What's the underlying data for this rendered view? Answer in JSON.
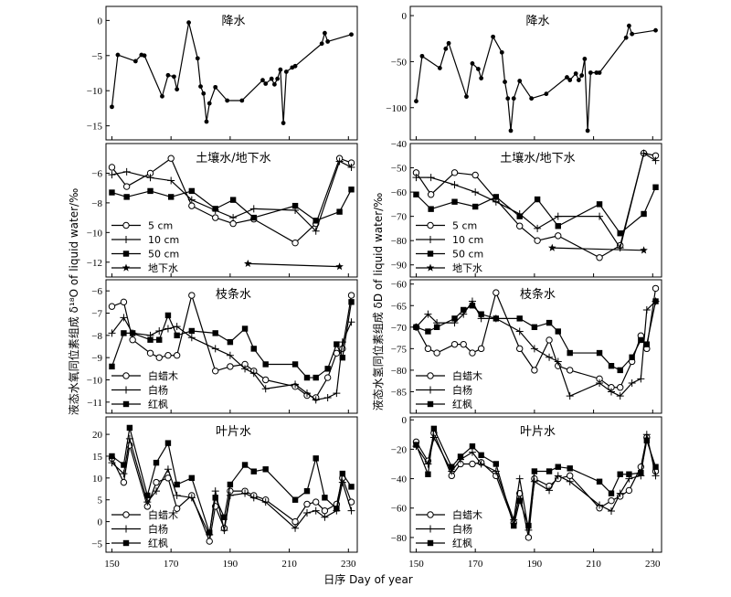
{
  "figure": {
    "xlabel": "日序 Day of year",
    "ylabel_left": "液态水氧同位素组成 δ¹⁸O of liquid water/‰",
    "ylabel_right": "液态水氢同位素组成 δD of liquid water/‰"
  },
  "chart_data": [
    {
      "type": "line",
      "column": "left",
      "row": 0,
      "title": "降水",
      "xlim": [
        148,
        233
      ],
      "ylim": [
        -17,
        2
      ],
      "yticks": [
        -15,
        -10,
        -5,
        0
      ],
      "xticks": [
        150,
        170,
        190,
        210,
        230
      ],
      "series": [
        {
          "name": "",
          "marker": "dot",
          "x": [
            150,
            152,
            158,
            160,
            161,
            167,
            169,
            171,
            172,
            176,
            179,
            180,
            181,
            182,
            183,
            185,
            189,
            194,
            201,
            202,
            204,
            205,
            206,
            207,
            208,
            209,
            211,
            212,
            221,
            222,
            223,
            231
          ],
          "y": [
            -12.3,
            -4.9,
            -5.8,
            -4.9,
            -5.0,
            -10.8,
            -7.8,
            -8.0,
            -9.8,
            -0.3,
            -5.4,
            -9.4,
            -10.4,
            -14.4,
            -11.8,
            -9.5,
            -11.4,
            -11.4,
            -8.5,
            -9.0,
            -8.3,
            -9.1,
            -8.3,
            -7.0,
            -14.6,
            -7.3,
            -6.7,
            -6.5,
            -3.3,
            -1.8,
            -3.0,
            -2.0
          ]
        }
      ]
    },
    {
      "type": "line",
      "column": "left",
      "row": 1,
      "title": "土壤水/地下水",
      "xlim": [
        148,
        233
      ],
      "ylim": [
        -13,
        -4
      ],
      "yticks": [
        -12,
        -10,
        -8,
        -6
      ],
      "xticks": [
        150,
        170,
        190,
        210,
        230
      ],
      "series": [
        {
          "name": "5 cm",
          "marker": "circle",
          "x": [
            150,
            155,
            163,
            170,
            177,
            185,
            191,
            198,
            212,
            219,
            227,
            231
          ],
          "y": [
            -5.6,
            -6.9,
            -6.0,
            -5.0,
            -8.2,
            -9.0,
            -9.4,
            -9.1,
            -10.7,
            -9.4,
            -5.0,
            -5.3
          ]
        },
        {
          "name": "10 cm",
          "marker": "plus",
          "x": [
            150,
            155,
            163,
            170,
            177,
            185,
            191,
            198,
            212,
            219,
            227,
            231
          ],
          "y": [
            -6.1,
            -5.9,
            -6.3,
            -6.5,
            -7.8,
            -8.5,
            -9.0,
            -8.4,
            -8.5,
            -9.9,
            -5.2,
            -5.6
          ]
        },
        {
          "name": "50 cm",
          "marker": "square",
          "x": [
            150,
            155,
            163,
            170,
            177,
            185,
            191,
            198,
            212,
            219,
            227,
            231
          ],
          "y": [
            -7.3,
            -7.6,
            -7.2,
            -7.6,
            -7.2,
            -8.4,
            -7.8,
            -9.0,
            -8.2,
            -9.2,
            -8.6,
            -7.1
          ]
        },
        {
          "name": "地下水",
          "marker": "star",
          "x": [
            196,
            227
          ],
          "y": [
            -12.1,
            -12.3
          ]
        }
      ]
    },
    {
      "type": "line",
      "column": "left",
      "row": 2,
      "title": "枝条水",
      "xlim": [
        148,
        233
      ],
      "ylim": [
        -11.5,
        -5.5
      ],
      "yticks": [
        -11,
        -10,
        -9,
        -8,
        -7,
        -6
      ],
      "xticks": [
        150,
        170,
        190,
        210,
        230
      ],
      "series": [
        {
          "name": "白蜡木",
          "marker": "circle",
          "x": [
            150,
            154,
            157,
            163,
            166,
            169,
            172,
            177,
            185,
            190,
            195,
            198,
            202,
            212,
            216,
            219,
            223,
            226,
            228,
            231
          ],
          "y": [
            -6.7,
            -6.5,
            -8.2,
            -8.8,
            -9.0,
            -8.9,
            -8.9,
            -6.2,
            -9.6,
            -9.4,
            -9.3,
            -9.6,
            -10.0,
            -10.3,
            -10.7,
            -10.8,
            -9.9,
            -8.8,
            -8.6,
            -6.2
          ]
        },
        {
          "name": "白杨",
          "marker": "plus",
          "x": [
            150,
            154,
            157,
            163,
            166,
            169,
            172,
            177,
            185,
            190,
            195,
            198,
            202,
            212,
            216,
            219,
            223,
            226,
            228,
            231
          ],
          "y": [
            -7.9,
            -7.2,
            -7.9,
            -8.0,
            -7.8,
            -7.7,
            -7.6,
            -8.1,
            -8.6,
            -8.9,
            -9.5,
            -9.7,
            -10.4,
            -10.2,
            -10.6,
            -10.9,
            -10.8,
            -10.6,
            -8.3,
            -7.4
          ]
        },
        {
          "name": "红枫",
          "marker": "square",
          "x": [
            150,
            154,
            157,
            163,
            166,
            169,
            172,
            177,
            185,
            190,
            195,
            198,
            202,
            212,
            216,
            219,
            223,
            226,
            228,
            231
          ],
          "y": [
            -9.4,
            -7.9,
            -7.9,
            -8.2,
            -8.2,
            -7.1,
            -8.0,
            -7.8,
            -7.9,
            -8.3,
            -7.7,
            -8.6,
            -9.3,
            -9.3,
            -9.9,
            -9.9,
            -9.5,
            -8.4,
            -9.0,
            -6.5
          ]
        }
      ]
    },
    {
      "type": "line",
      "column": "left",
      "row": 3,
      "title": "叶片水",
      "xlim": [
        148,
        233
      ],
      "ylim": [
        -7,
        24
      ],
      "yticks": [
        -5,
        0,
        5,
        10,
        15,
        20
      ],
      "xticks": [
        150,
        170,
        190,
        210,
        230
      ],
      "series": [
        {
          "name": "白蜡木",
          "marker": "circle",
          "x": [
            150,
            154,
            156,
            162,
            165,
            169,
            172,
            177,
            183,
            185,
            188,
            190,
            195,
            198,
            202,
            212,
            216,
            219,
            222,
            226,
            228,
            231
          ],
          "y": [
            14.5,
            9.0,
            17.5,
            3.5,
            9.0,
            10.0,
            3.0,
            6.0,
            -4.5,
            3.5,
            -1.5,
            7.0,
            7.0,
            6.0,
            5.0,
            0.0,
            4.0,
            4.5,
            2.5,
            4.0,
            10.0,
            4.5
          ]
        },
        {
          "name": "白杨",
          "marker": "plus",
          "x": [
            150,
            154,
            156,
            162,
            165,
            169,
            172,
            177,
            183,
            185,
            188,
            190,
            195,
            198,
            202,
            212,
            216,
            219,
            222,
            226,
            228,
            231
          ],
          "y": [
            13.5,
            11.0,
            19.0,
            4.5,
            7.0,
            12.0,
            6.0,
            5.5,
            -3.0,
            7.0,
            -2.0,
            6.0,
            6.5,
            5.5,
            4.5,
            -1.5,
            2.0,
            2.5,
            1.0,
            2.5,
            9.0,
            2.5
          ]
        },
        {
          "name": "红枫",
          "marker": "square",
          "x": [
            150,
            154,
            156,
            162,
            165,
            169,
            172,
            177,
            183,
            185,
            188,
            190,
            195,
            198,
            202,
            212,
            216,
            219,
            222,
            226,
            228,
            231
          ],
          "y": [
            15.0,
            13.0,
            21.5,
            6.0,
            13.5,
            18.0,
            8.5,
            10.0,
            -2.5,
            5.5,
            1.0,
            8.5,
            13.0,
            11.5,
            12.0,
            5.0,
            7.0,
            14.5,
            5.5,
            3.0,
            11.0,
            8.0
          ]
        }
      ]
    },
    {
      "type": "line",
      "column": "right",
      "row": 0,
      "title": "降水",
      "xlim": [
        148,
        233
      ],
      "ylim": [
        -135,
        10
      ],
      "yticks": [
        -100,
        -50,
        0
      ],
      "xticks": [
        150,
        170,
        190,
        210,
        230
      ],
      "series": [
        {
          "name": "",
          "marker": "dot",
          "x": [
            150,
            152,
            158,
            160,
            161,
            167,
            169,
            171,
            172,
            176,
            179,
            180,
            181,
            182,
            183,
            185,
            189,
            194,
            201,
            202,
            204,
            205,
            206,
            207,
            208,
            209,
            211,
            212,
            221,
            222,
            223,
            231
          ],
          "y": [
            -93,
            -44,
            -57,
            -36,
            -30,
            -88,
            -52,
            -58,
            -68,
            -23,
            -40,
            -72,
            -90,
            -125,
            -90,
            -71,
            -90,
            -85,
            -67,
            -70,
            -63,
            -70,
            -65,
            -47,
            -125,
            -62,
            -62,
            -62,
            -24,
            -11,
            -20,
            -16
          ]
        }
      ]
    },
    {
      "type": "line",
      "column": "right",
      "row": 1,
      "title": "土壤水/地下水",
      "xlim": [
        148,
        233
      ],
      "ylim": [
        -95,
        -40
      ],
      "yticks": [
        -90,
        -80,
        -70,
        -60,
        -50,
        -40
      ],
      "xticks": [
        150,
        170,
        190,
        210,
        230
      ],
      "series": [
        {
          "name": "5 cm",
          "marker": "circle",
          "x": [
            150,
            155,
            163,
            170,
            177,
            185,
            191,
            198,
            212,
            219,
            227,
            231
          ],
          "y": [
            -52,
            -61,
            -52,
            -53,
            -63,
            -74,
            -80,
            -78,
            -87,
            -82,
            -44,
            -45
          ]
        },
        {
          "name": "10 cm",
          "marker": "plus",
          "x": [
            150,
            155,
            163,
            170,
            177,
            185,
            191,
            198,
            212,
            219,
            227,
            231
          ],
          "y": [
            -54,
            -54,
            -57,
            -60,
            -64,
            -69,
            -75,
            -70,
            -70,
            -83,
            -44,
            -47
          ]
        },
        {
          "name": "50 cm",
          "marker": "square",
          "x": [
            150,
            155,
            163,
            170,
            177,
            185,
            191,
            198,
            212,
            219,
            227,
            231
          ],
          "y": [
            -61,
            -67,
            -64,
            -66,
            -62,
            -70,
            -63,
            -74,
            -65,
            -77,
            -69,
            -58
          ]
        },
        {
          "name": "地下水",
          "marker": "star",
          "x": [
            196,
            227
          ],
          "y": [
            -83,
            -84
          ]
        }
      ]
    },
    {
      "type": "line",
      "column": "right",
      "row": 2,
      "title": "枝条水",
      "xlim": [
        148,
        233
      ],
      "ylim": [
        -90,
        -59
      ],
      "yticks": [
        -85,
        -80,
        -75,
        -70,
        -65,
        -60
      ],
      "xticks": [
        150,
        170,
        190,
        210,
        230
      ],
      "series": [
        {
          "name": "白蜡木",
          "marker": "circle",
          "x": [
            150,
            154,
            157,
            163,
            166,
            169,
            172,
            177,
            185,
            190,
            195,
            198,
            202,
            212,
            216,
            219,
            223,
            226,
            228,
            231
          ],
          "y": [
            -70,
            -75,
            -76,
            -74,
            -74,
            -76,
            -75,
            -62,
            -75,
            -80,
            -73,
            -79,
            -80,
            -82,
            -84,
            -84,
            -78,
            -72,
            -75,
            -61
          ]
        },
        {
          "name": "白杨",
          "marker": "plus",
          "x": [
            150,
            154,
            157,
            163,
            166,
            169,
            172,
            177,
            185,
            190,
            195,
            198,
            202,
            212,
            216,
            219,
            223,
            226,
            228,
            231
          ],
          "y": [
            -70,
            -67,
            -69,
            -69,
            -67,
            -64,
            -68,
            -68,
            -71,
            -75,
            -77,
            -78,
            -86,
            -83,
            -85,
            -86,
            -83,
            -82,
            -66,
            -64
          ]
        },
        {
          "name": "红枫",
          "marker": "square",
          "x": [
            150,
            154,
            157,
            163,
            166,
            169,
            172,
            177,
            185,
            190,
            195,
            198,
            202,
            212,
            216,
            219,
            223,
            226,
            228,
            231
          ],
          "y": [
            -70,
            -71,
            -70,
            -68,
            -66,
            -65,
            -67,
            -68,
            -68,
            -70,
            -69,
            -71,
            -76,
            -76,
            -79,
            -80,
            -77,
            -73,
            -74,
            -64
          ]
        }
      ]
    },
    {
      "type": "line",
      "column": "right",
      "row": 3,
      "title": "叶片水",
      "xlim": [
        148,
        233
      ],
      "ylim": [
        -90,
        2
      ],
      "yticks": [
        -80,
        -60,
        -40,
        -20,
        0
      ],
      "xticks": [
        150,
        170,
        190,
        210,
        230
      ],
      "series": [
        {
          "name": "白蜡木",
          "marker": "circle",
          "x": [
            150,
            154,
            156,
            162,
            165,
            169,
            172,
            177,
            183,
            185,
            188,
            190,
            195,
            198,
            202,
            212,
            216,
            219,
            222,
            226,
            228,
            231
          ],
          "y": [
            -15,
            -28,
            -9,
            -38,
            -30,
            -30,
            -29,
            -38,
            -70,
            -50,
            -80,
            -40,
            -45,
            -40,
            -38,
            -60,
            -55,
            -52,
            -48,
            -32,
            -12,
            -35
          ]
        },
        {
          "name": "白杨",
          "marker": "plus",
          "x": [
            150,
            154,
            156,
            162,
            165,
            169,
            172,
            177,
            183,
            185,
            188,
            190,
            195,
            198,
            202,
            212,
            216,
            219,
            222,
            226,
            228,
            231
          ],
          "y": [
            -18,
            -30,
            -12,
            -35,
            -27,
            -22,
            -30,
            -35,
            -68,
            -40,
            -75,
            -42,
            -48,
            -38,
            -42,
            -58,
            -62,
            -50,
            -40,
            -38,
            -10,
            -38
          ]
        },
        {
          "name": "红枫",
          "marker": "square",
          "x": [
            150,
            154,
            156,
            162,
            165,
            169,
            172,
            177,
            183,
            185,
            188,
            190,
            195,
            198,
            202,
            212,
            216,
            219,
            222,
            226,
            228,
            231
          ],
          "y": [
            -17,
            -37,
            -6,
            -32,
            -25,
            -18,
            -24,
            -30,
            -72,
            -55,
            -72,
            -35,
            -35,
            -32,
            -33,
            -42,
            -50,
            -37,
            -37,
            -36,
            -14,
            -32
          ]
        }
      ]
    }
  ]
}
